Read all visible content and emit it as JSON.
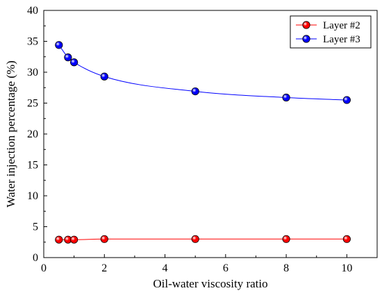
{
  "chart_data": {
    "type": "line",
    "xlabel": "Oil-water viscosity ratio",
    "ylabel": "Water injection percentage (%)",
    "xlim": [
      0,
      11
    ],
    "ylim": [
      0,
      40
    ],
    "xticks": [
      0,
      2,
      4,
      6,
      8,
      10
    ],
    "yticks": [
      0,
      5,
      10,
      15,
      20,
      25,
      30,
      35,
      40
    ],
    "grid": false,
    "legend_position": "top-right",
    "x": [
      0.5,
      0.8,
      1,
      2,
      5,
      8,
      10
    ],
    "series": [
      {
        "name": "Layer #2",
        "color": "#ff0000",
        "values": [
          2.9,
          2.9,
          2.9,
          3.0,
          3.0,
          3.0,
          3.0
        ]
      },
      {
        "name": "Layer #3",
        "color": "#0000ff",
        "values": [
          34.4,
          32.4,
          31.6,
          29.3,
          26.9,
          25.9,
          25.5
        ]
      }
    ]
  }
}
